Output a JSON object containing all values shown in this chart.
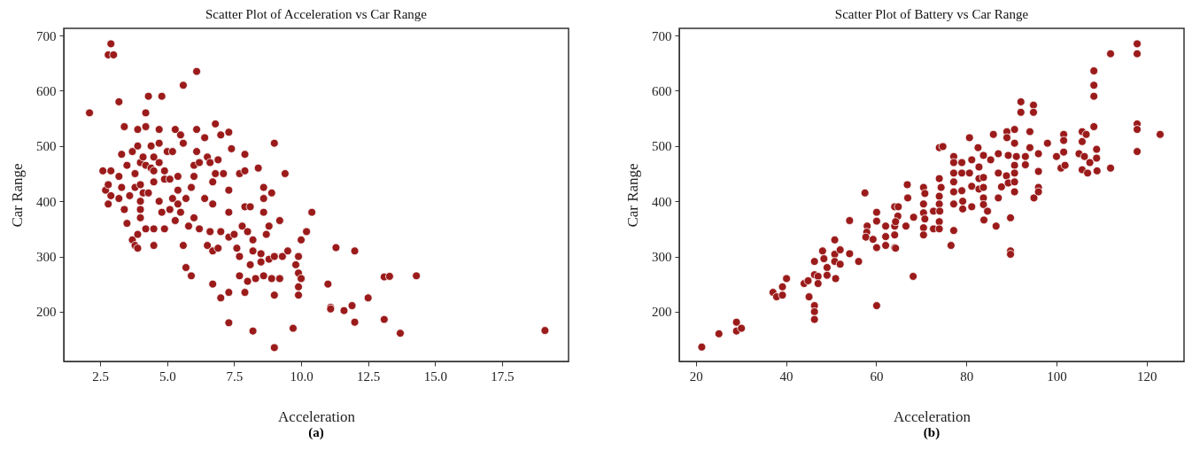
{
  "chart_data": [
    {
      "type": "scatter",
      "title": "Scatter Plot of Acceleration vs Car Range",
      "xlabel": "Acceleration",
      "ylabel": "Car Range",
      "annotations": [
        "(a)"
      ],
      "marker": "circle",
      "grid": false,
      "xlim": [
        1.14,
        19.98
      ],
      "ylim": [
        110,
        713
      ],
      "xticks": [
        2.5,
        {
          "value": 5,
          "label": "5.0"
        },
        7.5,
        {
          "value": 10,
          "label": "10.0"
        },
        12.5,
        {
          "value": 15,
          "label": "15.0"
        },
        17.5
      ],
      "yticks": [
        200,
        300,
        400,
        500,
        600,
        700
      ],
      "series": [
        {
          "color": "#9b1b1b",
          "x": [
            2.1,
            2.6,
            2.7,
            2.8,
            2.8,
            2.9,
            2.9,
            2.8,
            2.9,
            3.0,
            3.2,
            3.2,
            3.2,
            3.3,
            3.3,
            3.4,
            3.4,
            3.5,
            3.5,
            3.6,
            3.7,
            3.7,
            3.8,
            3.8,
            3.8,
            3.9,
            3.9,
            3.9,
            3.9,
            4.0,
            4.0,
            4.0,
            4.0,
            4.0,
            4.1,
            4.1,
            4.2,
            4.2,
            4.2,
            4.2,
            4.3,
            4.3,
            4.4,
            4.4,
            4.5,
            4.5,
            4.5,
            4.5,
            4.5,
            4.7,
            4.7,
            4.7,
            4.7,
            4.8,
            4.8,
            4.9,
            4.9,
            4.9,
            5.0,
            5.1,
            5.1,
            5.2,
            5.2,
            5.3,
            5.3,
            5.4,
            5.4,
            5.4,
            5.5,
            5.5,
            5.6,
            5.6,
            5.6,
            5.7,
            5.7,
            5.8,
            5.9,
            5.9,
            6.0,
            6.0,
            6.0,
            6.1,
            6.1,
            6.1,
            6.2,
            6.2,
            6.4,
            6.4,
            6.5,
            6.5,
            6.6,
            6.6,
            6.7,
            6.7,
            6.7,
            6.7,
            6.8,
            6.8,
            6.9,
            6.9,
            7.0,
            7.0,
            7.0,
            7.1,
            7.3,
            7.3,
            7.3,
            7.3,
            7.3,
            7.3,
            7.4,
            7.5,
            7.6,
            7.7,
            7.7,
            7.7,
            7.8,
            7.9,
            7.9,
            7.9,
            7.9,
            8.0,
            8.0,
            8.1,
            8.1,
            8.2,
            8.2,
            8.2,
            8.3,
            8.4,
            8.5,
            8.5,
            8.6,
            8.6,
            8.6,
            8.6,
            8.7,
            8.8,
            8.8,
            8.9,
            8.9,
            9.0,
            9.0,
            9.0,
            9.0,
            9.2,
            9.2,
            9.3,
            9.4,
            9.5,
            9.7,
            9.8,
            9.9,
            9.9,
            9.9,
            9.9,
            10.0,
            10.0,
            10.2,
            10.4,
            11.0,
            11.1,
            11.1,
            11.3,
            11.6,
            11.9,
            12.0,
            12.0,
            12.5,
            13.1,
            13.1,
            13.3,
            13.7,
            14.3,
            19.1
          ],
          "values": [
            560,
            455,
            420,
            395,
            430,
            455,
            410,
            665,
            685,
            665,
            580,
            445,
            405,
            485,
            425,
            535,
            385,
            465,
            360,
            410,
            330,
            490,
            450,
            425,
            320,
            500,
            530,
            340,
            315,
            470,
            430,
            400,
            385,
            370,
            480,
            415,
            560,
            535,
            465,
            350,
            590,
            415,
            500,
            460,
            480,
            455,
            435,
            350,
            320,
            530,
            505,
            470,
            400,
            590,
            380,
            455,
            440,
            350,
            490,
            440,
            385,
            405,
            490,
            530,
            365,
            445,
            395,
            420,
            520,
            380,
            610,
            505,
            320,
            280,
            405,
            355,
            265,
            425,
            465,
            370,
            445,
            635,
            530,
            490,
            470,
            350,
            405,
            515,
            480,
            320,
            345,
            470,
            435,
            395,
            310,
            250,
            540,
            450,
            475,
            315,
            520,
            345,
            225,
            450,
            525,
            420,
            380,
            335,
            235,
            180,
            495,
            340,
            315,
            450,
            300,
            265,
            355,
            485,
            455,
            390,
            235,
            345,
            255,
            390,
            285,
            330,
            310,
            165,
            260,
            460,
            305,
            290,
            425,
            405,
            380,
            265,
            340,
            355,
            295,
            415,
            260,
            505,
            300,
            230,
            135,
            365,
            260,
            300,
            450,
            310,
            170,
            285,
            300,
            270,
            245,
            230,
            330,
            260,
            345,
            380,
            250,
            208,
            205,
            316,
            202,
            211,
            310,
            181,
            225,
            186,
            263,
            264,
            161,
            265,
            166
          ]
        }
      ]
    },
    {
      "type": "scatter",
      "title": "Scatter Plot of Battery vs Car Range",
      "xlabel": "Acceleration",
      "ylabel": "Car Range",
      "annotations": [
        "(b)"
      ],
      "marker": "circle",
      "grid": false,
      "xlim": [
        16.3,
        128.3
      ],
      "ylim": [
        110,
        713
      ],
      "xticks": [
        20,
        40,
        60,
        80,
        100,
        120
      ],
      "yticks": [
        200,
        300,
        400,
        500,
        600,
        700
      ],
      "series": [
        {
          "color": "#9b1b1b",
          "x": [
            21.3,
            25.1,
            29,
            29,
            30.1,
            37.1,
            37.9,
            39.2,
            39.2,
            40.1,
            44,
            44.9,
            45.1,
            46.3,
            46.3,
            46.3,
            46.3,
            46.3,
            47.1,
            47.1,
            48.1,
            48.4,
            49.1,
            49.1,
            50.8,
            50.8,
            50.8,
            51,
            52,
            52,
            54.1,
            54.1,
            56.1,
            57.5,
            58,
            57.9,
            57.7,
            59.3,
            60.1,
            60.1,
            60.1,
            60.1,
            62.1,
            62.1,
            62.1,
            64.1,
            64.1,
            64.1,
            64.1,
            64.8,
            64.9,
            64.3,
            64.3,
            66.9,
            67,
            66.6,
            68.2,
            68.3,
            70.5,
            70.8,
            70.5,
            70.5,
            70.8,
            70.5,
            70.5,
            72.7,
            72.7,
            74,
            74,
            74.4,
            74,
            74,
            74.1,
            74,
            74,
            74.8,
            76.6,
            77.2,
            77.2,
            77.2,
            77.2,
            77.2,
            77.2,
            77.2,
            79,
            79,
            79,
            79.2,
            79.2,
            80.7,
            80.7,
            81.2,
            81.2,
            81.2,
            82.6,
            82.8,
            82.8,
            82.8,
            83.8,
            83.8,
            83.8,
            83.8,
            83.8,
            83.9,
            85.4,
            84.7,
            86,
            86.6,
            87.1,
            87.1,
            87.1,
            87.8,
            89,
            89,
            88.9,
            89.3,
            89.3,
            89.8,
            89.8,
            89.8,
            90.7,
            90.7,
            90.7,
            90.7,
            90.7,
            90.7,
            91.1,
            92.1,
            92.1,
            93.1,
            93.1,
            94.1,
            94.1,
            94.9,
            94.9,
            95,
            96,
            96,
            96,
            96,
            98,
            100,
            101,
            101.6,
            101.6,
            101.6,
            101.9,
            105,
            105.7,
            105.7,
            105.7,
            106.6,
            106.2,
            106.9,
            107.4,
            108.3,
            108.3,
            108.3,
            108.3,
            108.9,
            108.9,
            109,
            112,
            112,
            117.9,
            117.9,
            117.9,
            117.9,
            117.9,
            123
          ],
          "values": [
            136,
            160,
            181,
            165,
            170,
            235,
            227,
            245,
            230,
            260,
            251,
            256,
            227,
            211,
            200,
            186,
            291,
            267,
            264,
            251,
            310,
            296,
            280,
            266,
            330,
            304,
            291,
            260,
            286,
            312,
            365,
            305,
            291,
            415,
            355,
            344,
            335,
            331,
            380,
            364,
            316,
            211,
            355,
            336,
            320,
            390,
            355,
            339,
            316,
            373,
            390,
            363,
            315,
            430,
            406,
            355,
            264,
            371,
            425,
            414,
            395,
            379,
            368,
            352,
            339,
            382,
            350,
            497,
            441,
            425,
            409,
            395,
            382,
            363,
            350,
            499,
            320,
            481,
            470,
            451,
            435,
            417,
            395,
            347,
            470,
            451,
            419,
            400,
            386,
            515,
            451,
            475,
            427,
            390,
            497,
            462,
            441,
            422,
            483,
            443,
            425,
            406,
            394,
            366,
            475,
            382,
            521,
            355,
            486,
            451,
            406,
            426,
            526,
            515,
            446,
            483,
            433,
            370,
            310,
            304,
            530,
            505,
            465,
            451,
            435,
            417,
            481,
            580,
            561,
            481,
            466,
            526,
            497,
            574,
            561,
            406,
            486,
            454,
            425,
            417,
            505,
            481,
            460,
            521,
            510,
            489,
            465,
            486,
            508,
            526,
            457,
            521,
            481,
            451,
            470,
            636,
            610,
            590,
            535,
            494,
            478,
            455,
            667,
            460,
            685,
            667,
            540,
            530,
            490,
            521
          ]
        }
      ]
    }
  ]
}
